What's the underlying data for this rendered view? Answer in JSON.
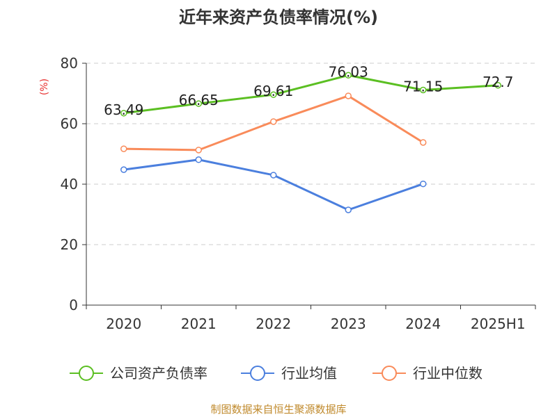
{
  "title": "近年来资产负债率情况(%)",
  "source": "制图数据来自恒生聚源数据库",
  "chart_data": {
    "type": "line",
    "title": "近年来资产负债率情况(%)",
    "ylabel": "(%)",
    "categories": [
      "2020",
      "2021",
      "2022",
      "2023",
      "2024",
      "2025H1"
    ],
    "ylim": [
      0,
      80
    ],
    "yticks": [
      0,
      20,
      40,
      60,
      80
    ],
    "grid": true,
    "legend_position": "bottom",
    "series": [
      {
        "name": "公司资产负债率",
        "color": "#5bbf22",
        "values": [
          63.49,
          66.65,
          69.61,
          76.03,
          71.15,
          72.7
        ],
        "labels": [
          "63.49",
          "66.65",
          "69.61",
          "76.03",
          "71.15",
          "72.7"
        ]
      },
      {
        "name": "行业均值",
        "color": "#4b7fde",
        "values": [
          44.8,
          48.1,
          43.0,
          31.5,
          40.1,
          null
        ]
      },
      {
        "name": "行业中位数",
        "color": "#f98b5a",
        "values": [
          51.7,
          51.3,
          60.7,
          69.2,
          53.8,
          null
        ]
      }
    ]
  }
}
